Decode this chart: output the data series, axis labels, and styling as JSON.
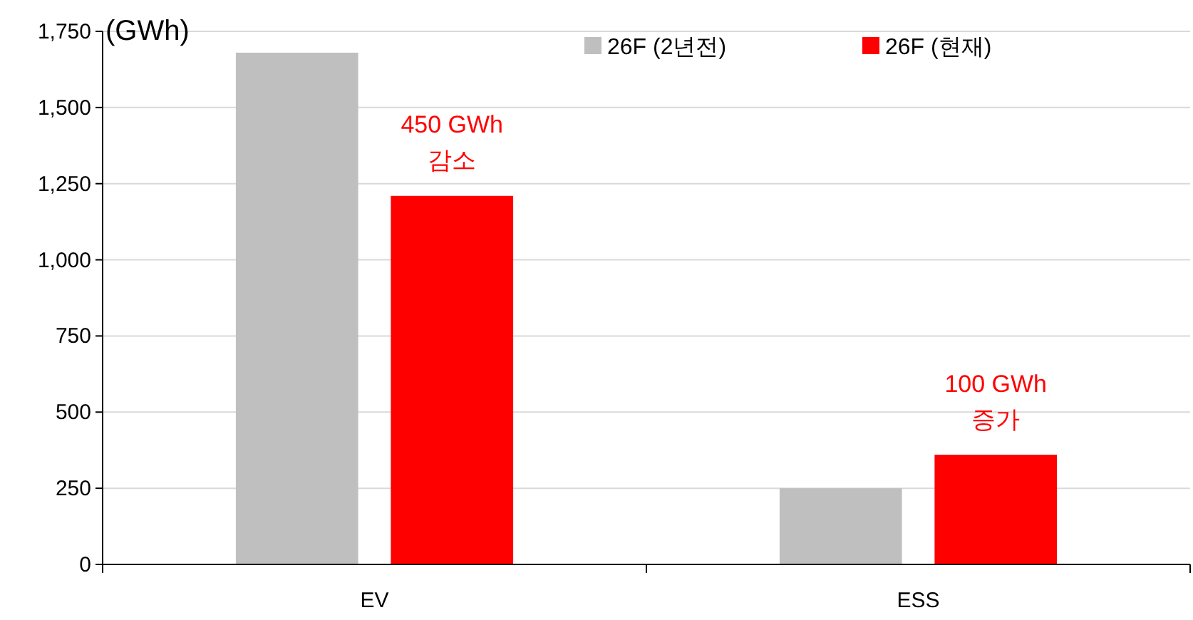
{
  "chart_data": {
    "type": "bar",
    "ylabel": "(GWh)",
    "categories": [
      "EV",
      "ESS"
    ],
    "series": [
      {
        "name": "26F (2년전)",
        "color": "#bfbfbf",
        "values": [
          1680,
          250
        ]
      },
      {
        "name": "26F (현재)",
        "color": "#ff0000",
        "values": [
          1210,
          360
        ]
      }
    ],
    "ylim": [
      0,
      1750
    ],
    "yticks": [
      0,
      250,
      500,
      750,
      {
        "value": 1000,
        "label": "1,000"
      },
      {
        "value": 1250,
        "label": "1,250"
      },
      {
        "value": 1500,
        "label": "1,500"
      },
      {
        "value": 1750,
        "label": "1,750"
      }
    ],
    "grid": "y",
    "legend": "top right",
    "annotations": [
      "450 GWh 감소",
      "100 GWh 증가"
    ]
  }
}
